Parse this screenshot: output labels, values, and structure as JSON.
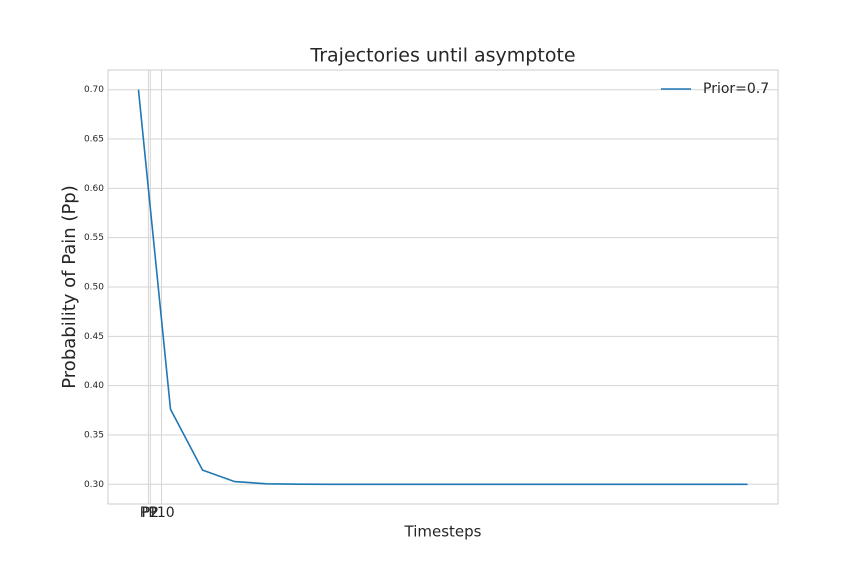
{
  "chart_data": {
    "type": "line",
    "title": "Trajectories until asymptote",
    "x_label": "Timesteps",
    "y_label": "Probability of Pain (Pp)",
    "x": [
      0,
      1,
      2,
      3,
      4,
      5,
      6,
      7,
      8,
      9,
      10,
      11,
      12,
      13,
      14,
      15,
      16,
      17,
      18,
      19
    ],
    "series": [
      {
        "name": "Prior=0.7",
        "color": "#1f77b4",
        "values": [
          0.7,
          0.376,
          0.3144,
          0.3027,
          0.3005,
          0.3001,
          0.3,
          0.3,
          0.3,
          0.3,
          0.3,
          0.3,
          0.3,
          0.3,
          0.3,
          0.3,
          0.3,
          0.3,
          0.3,
          0.3
        ]
      }
    ],
    "xlim": [
      -0.95,
      19.95
    ],
    "ylim": [
      0.28,
      0.72
    ],
    "xticks": [
      {
        "value": 0.31,
        "label": "P1"
      },
      {
        "value": 0.37,
        "label": "P2"
      },
      {
        "value": 0.72,
        "label": "P10"
      }
    ],
    "yticks": [
      {
        "value": 0.3,
        "label": "0.30"
      },
      {
        "value": 0.35,
        "label": "0.35"
      },
      {
        "value": 0.4,
        "label": "0.40"
      },
      {
        "value": 0.45,
        "label": "0.45"
      },
      {
        "value": 0.5,
        "label": "0.50"
      },
      {
        "value": 0.55,
        "label": "0.55"
      },
      {
        "value": 0.6,
        "label": "0.60"
      },
      {
        "value": 0.65,
        "label": "0.65"
      },
      {
        "value": 0.7,
        "label": "0.70"
      }
    ],
    "grid": true,
    "legend": "upper right"
  }
}
